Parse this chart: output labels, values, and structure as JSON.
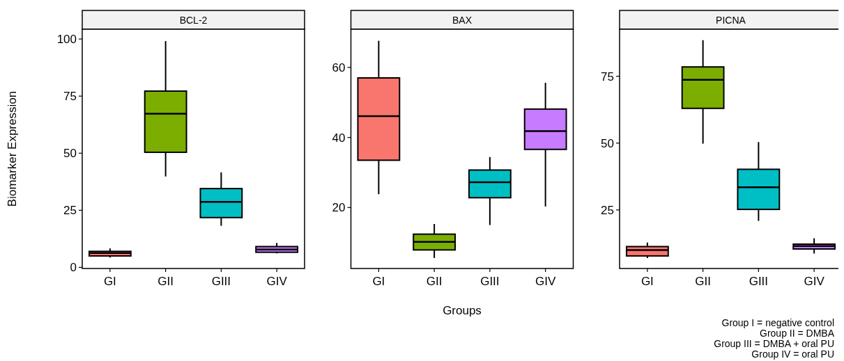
{
  "chart_data": [
    {
      "type": "box",
      "title": "BCL-2",
      "ylabel": "Biomarker Expression",
      "categories": [
        "GI",
        "GII",
        "GIII",
        "GIV"
      ],
      "colors": [
        "#f8766d",
        "#7cae00",
        "#00bfc4",
        "#c77cff"
      ],
      "ylim": [
        -0.5,
        104.3
      ],
      "yticks": [
        0,
        25,
        50,
        75,
        100
      ],
      "boxes": [
        {
          "low": 4.3,
          "q1": 5,
          "median": 6.3,
          "q3": 7,
          "high": 8.3
        },
        {
          "low": 39.8,
          "q1": 50.4,
          "median": 67.3,
          "q3": 77.2,
          "high": 99.1
        },
        {
          "low": 18.2,
          "q1": 21.8,
          "median": 28.7,
          "q3": 34.5,
          "high": 41.6
        },
        {
          "low": 6.1,
          "q1": 6.6,
          "median": 7.8,
          "q3": 9.1,
          "high": 10.7
        }
      ]
    },
    {
      "type": "box",
      "title": "BAX",
      "xlabel": "Groups",
      "categories": [
        "GI",
        "GII",
        "GIII",
        "GIV"
      ],
      "colors": [
        "#f8766d",
        "#7cae00",
        "#00bfc4",
        "#c77cff"
      ],
      "ylim": [
        2.6,
        70.9
      ],
      "yticks": [
        20,
        40,
        60
      ],
      "boxes": [
        {
          "low": 23.8,
          "q1": 33.5,
          "median": 46.1,
          "q3": 57,
          "high": 67.6
        },
        {
          "low": 5.6,
          "q1": 7.9,
          "median": 10.2,
          "q3": 12.4,
          "high": 15.3
        },
        {
          "low": 15,
          "q1": 22.8,
          "median": 27.2,
          "q3": 30.7,
          "high": 34.4
        },
        {
          "low": 20.3,
          "q1": 36.6,
          "median": 41.8,
          "q3": 48.1,
          "high": 55.6
        }
      ]
    },
    {
      "type": "box",
      "title": "PICNA",
      "categories": [
        "GI",
        "GII",
        "GIII",
        "GIV"
      ],
      "colors": [
        "#f8766d",
        "#7cae00",
        "#00bfc4",
        "#c77cff"
      ],
      "ylim": [
        3.1,
        92.6
      ],
      "yticks": [
        25,
        50,
        75
      ],
      "boxes": [
        {
          "low": 7,
          "q1": 7.8,
          "median": 10,
          "q3": 11.3,
          "high": 12.8
        },
        {
          "low": 49.8,
          "q1": 63,
          "median": 73.7,
          "q3": 78.5,
          "high": 88.5
        },
        {
          "low": 20.9,
          "q1": 25.2,
          "median": 33.5,
          "q3": 40.2,
          "high": 50.4
        },
        {
          "low": 8.7,
          "q1": 10.4,
          "median": 11.5,
          "q3": 12.2,
          "high": 14.4
        }
      ],
      "annotations": [
        "Group I = negative control",
        "Group II = DMBA",
        "Group III = DMBA + oral PU",
        "Group IV = oral PU"
      ]
    }
  ]
}
